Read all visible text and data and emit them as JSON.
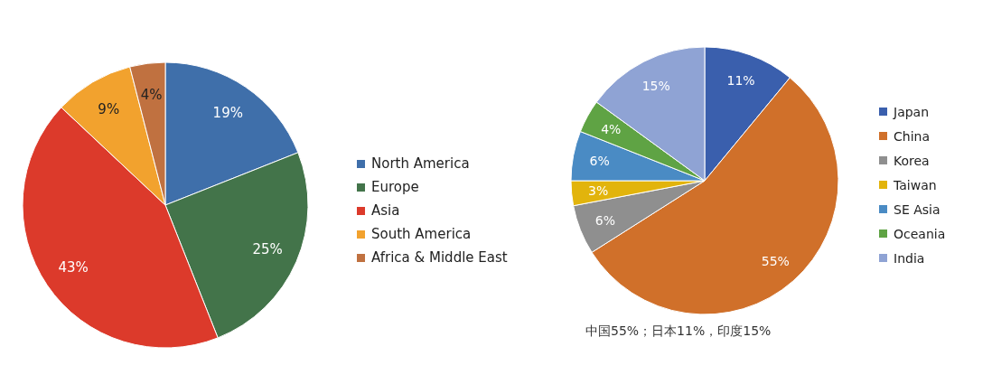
{
  "chart_data": [
    {
      "type": "pie",
      "categories": [
        "North America",
        "Europe",
        "Asia",
        "South America",
        "Africa & Middle East"
      ],
      "values": [
        19,
        25,
        43,
        9,
        4
      ],
      "value_labels": [
        "19%",
        "25%",
        "43%",
        "9%",
        "4%"
      ],
      "colors": [
        "#3f6faa",
        "#43744a",
        "#dc3a2b",
        "#f2a22e",
        "#c07140"
      ],
      "legend": "right"
    },
    {
      "type": "pie",
      "categories": [
        "Japan",
        "China",
        "Korea",
        "Taiwan",
        "SE Asia",
        "Oceania",
        "India"
      ],
      "values": [
        11,
        55,
        6,
        3,
        6,
        4,
        15
      ],
      "value_labels": [
        "11%",
        "55%",
        "6%",
        "3%",
        "6%",
        "4%",
        "15%"
      ],
      "colors": [
        "#3a5fad",
        "#d0702a",
        "#8f8f8f",
        "#e2b40c",
        "#4a8bc4",
        "#5fa344",
        "#8fa3d4"
      ],
      "legend": "right",
      "annotations": [
        "中国55%；日本11%，印度15%"
      ]
    }
  ]
}
